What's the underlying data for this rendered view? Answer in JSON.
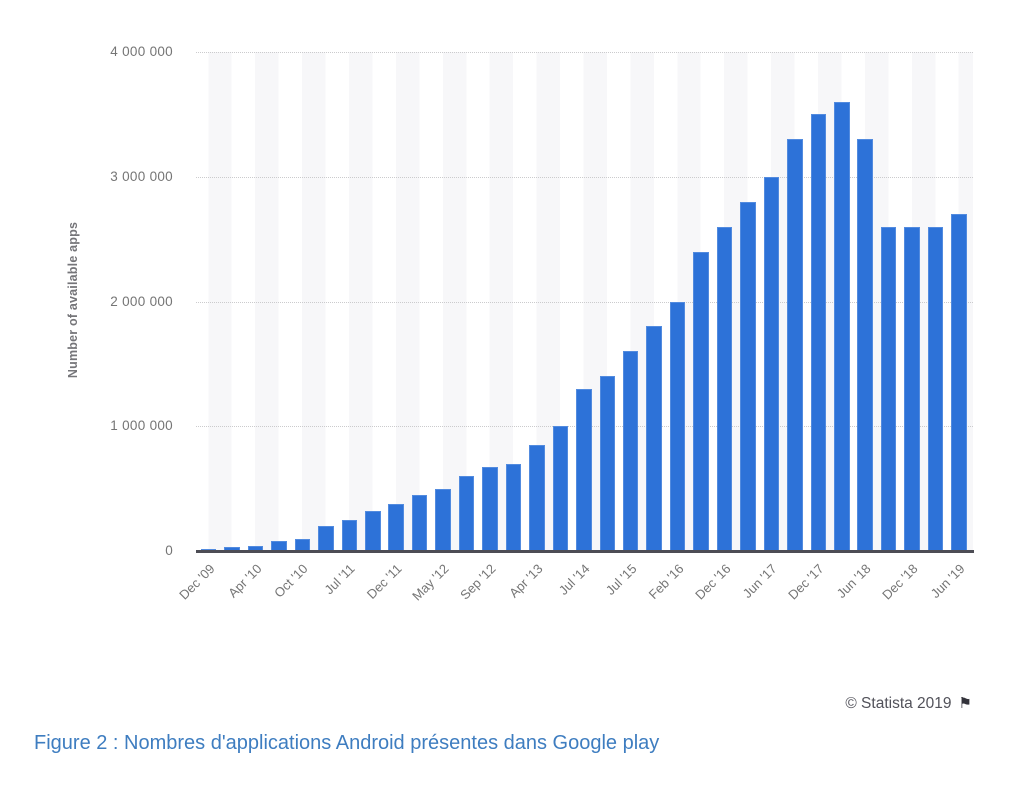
{
  "chart_data": {
    "type": "bar",
    "title": "",
    "xlabel": "",
    "ylabel": "Number of available apps",
    "ylim": [
      0,
      4000000
    ],
    "grid": "horizontal dotted lines at 1M intervals, alternating light vertical bands",
    "legend": "none",
    "bar_color": "#2d72d8",
    "ytick_labels_top_to_bottom": [
      "4 000 000",
      "3 000 000",
      "2 000 000",
      "1 000 000",
      "0"
    ],
    "ytick_values_top_to_bottom": [
      4000000,
      3000000,
      2000000,
      1000000,
      0
    ],
    "values": [
      16000,
      30000,
      38000,
      80000,
      100000,
      200000,
      250000,
      320000,
      380000,
      450000,
      500000,
      600000,
      675000,
      700000,
      850000,
      1000000,
      1300000,
      1400000,
      1600000,
      1800000,
      2000000,
      2400000,
      2600000,
      2800000,
      3000000,
      3300000,
      3500000,
      3600000,
      3300000,
      2600000,
      2600000,
      2600000,
      2700000
    ],
    "xtick_labels": [
      "Dec '09",
      "Apr '10",
      "Oct '10",
      "Jul '11",
      "Dec '11",
      "May '12",
      "Sep '12",
      "Apr '13",
      "Jul '14",
      "Jul '15",
      "Feb '16",
      "Dec '16",
      "Jun '17",
      "Dec '17",
      "Jun '18",
      "Dec '18",
      "Jun '19"
    ],
    "xtick_placement": "every other bar, starting with the first bar; labels rotated 45 degrees"
  },
  "credit": {
    "text": "© Statista 2019",
    "flag_icon": "⚑"
  },
  "caption": {
    "text": "Figure 2 : Nombres d'applications Android présentes dans Google play"
  }
}
